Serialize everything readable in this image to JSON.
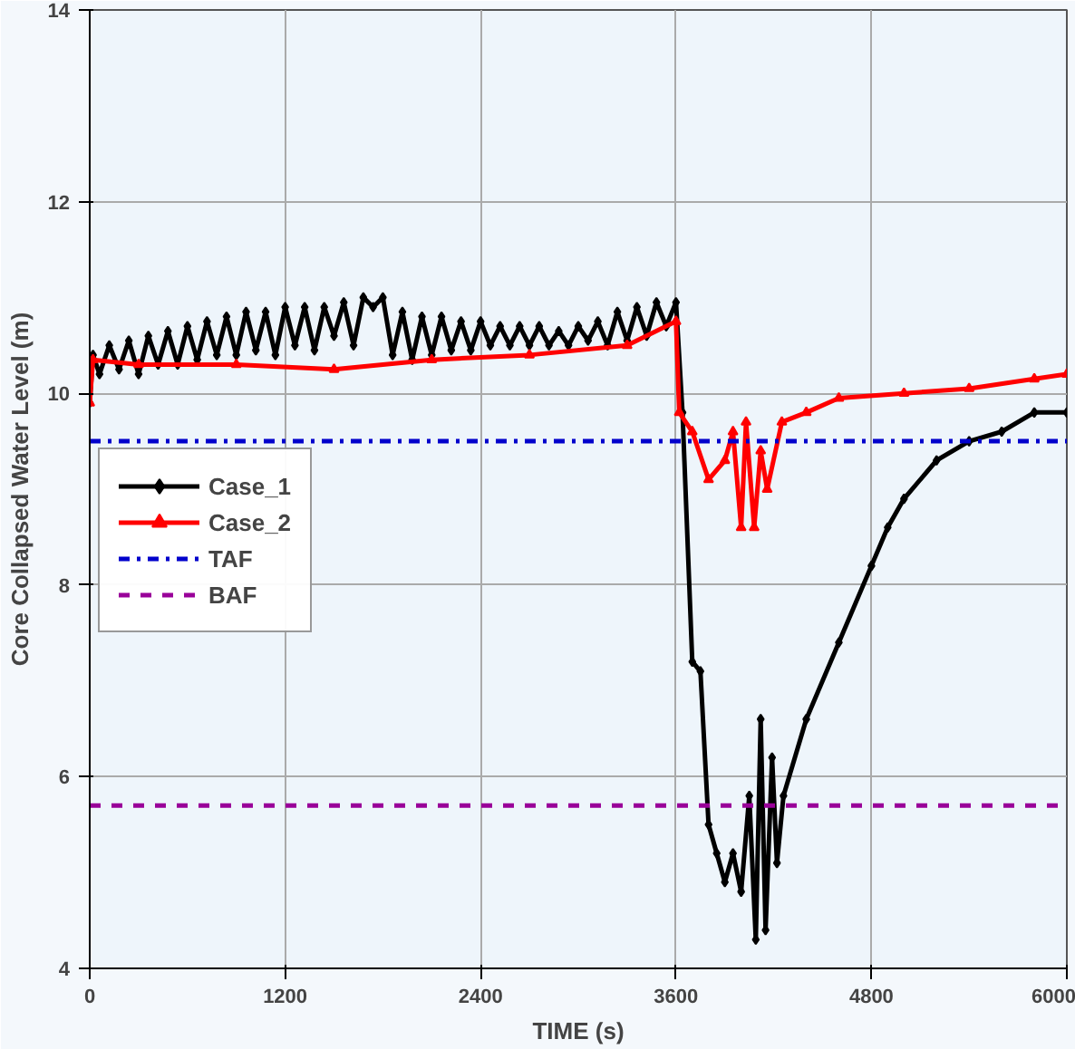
{
  "chart_data": {
    "type": "line",
    "xlabel": "TIME (s)",
    "ylabel": "Core Collapsed Water Level (m)",
    "xlim": [
      0,
      6000
    ],
    "ylim": [
      4,
      14
    ],
    "xticks": [
      0,
      1200,
      2400,
      3600,
      4800,
      6000
    ],
    "yticks": [
      4,
      6,
      8,
      10,
      12,
      14
    ],
    "grid": true,
    "legend": "left",
    "line_style": "solid",
    "series": [
      {
        "name": "Case_1",
        "color": "#000000",
        "marker": "diamond",
        "x": [
          0,
          20,
          60,
          120,
          180,
          240,
          300,
          360,
          420,
          480,
          540,
          600,
          660,
          720,
          780,
          840,
          900,
          960,
          1020,
          1080,
          1140,
          1200,
          1260,
          1320,
          1380,
          1440,
          1500,
          1560,
          1620,
          1680,
          1740,
          1800,
          1860,
          1920,
          1980,
          2040,
          2100,
          2160,
          2220,
          2280,
          2340,
          2400,
          2460,
          2520,
          2580,
          2640,
          2700,
          2760,
          2820,
          2880,
          2940,
          3000,
          3060,
          3120,
          3180,
          3240,
          3300,
          3360,
          3420,
          3480,
          3540,
          3600,
          3640,
          3700,
          3750,
          3800,
          3850,
          3900,
          3950,
          4000,
          4050,
          4090,
          4120,
          4150,
          4190,
          4220,
          4260,
          4400,
          4600,
          4800,
          4900,
          5000,
          5200,
          5400,
          5600,
          5800,
          6000
        ],
        "values": [
          9.9,
          10.4,
          10.2,
          10.5,
          10.25,
          10.55,
          10.2,
          10.6,
          10.3,
          10.65,
          10.3,
          10.7,
          10.35,
          10.75,
          10.4,
          10.8,
          10.4,
          10.85,
          10.45,
          10.85,
          10.4,
          10.9,
          10.5,
          10.9,
          10.45,
          10.9,
          10.6,
          10.95,
          10.5,
          11.0,
          10.9,
          11.0,
          10.4,
          10.85,
          10.35,
          10.8,
          10.4,
          10.8,
          10.45,
          10.75,
          10.45,
          10.75,
          10.5,
          10.7,
          10.5,
          10.7,
          10.5,
          10.7,
          10.5,
          10.65,
          10.5,
          10.7,
          10.55,
          10.75,
          10.5,
          10.85,
          10.55,
          10.9,
          10.6,
          10.95,
          10.7,
          10.95,
          9.8,
          7.2,
          7.1,
          5.5,
          5.2,
          4.9,
          5.2,
          4.8,
          5.8,
          4.3,
          6.6,
          4.4,
          6.2,
          5.1,
          5.8,
          6.6,
          7.4,
          8.2,
          8.6,
          8.9,
          9.3,
          9.5,
          9.6,
          9.8,
          9.8
        ]
      },
      {
        "name": "Case_2",
        "color": "#ff0000",
        "marker": "triangle",
        "x": [
          0,
          20,
          300,
          900,
          1500,
          2100,
          2700,
          3300,
          3600,
          3620,
          3700,
          3800,
          3900,
          3950,
          4000,
          4030,
          4080,
          4120,
          4160,
          4250,
          4400,
          4600,
          5000,
          5400,
          5800,
          6000
        ],
        "values": [
          9.9,
          10.35,
          10.3,
          10.3,
          10.25,
          10.35,
          10.4,
          10.5,
          10.75,
          9.8,
          9.6,
          9.1,
          9.3,
          9.6,
          8.6,
          9.7,
          8.6,
          9.4,
          9.0,
          9.7,
          9.8,
          9.95,
          10.0,
          10.05,
          10.15,
          10.2
        ]
      }
    ],
    "ref_lines": [
      {
        "axis": "y",
        "value": 9.5,
        "label": "TAF",
        "color": "#0000cc",
        "line_style": "dashdot"
      },
      {
        "axis": "y",
        "value": 5.7,
        "label": "BAF",
        "color": "#990099",
        "line_style": "dashed"
      }
    ]
  }
}
